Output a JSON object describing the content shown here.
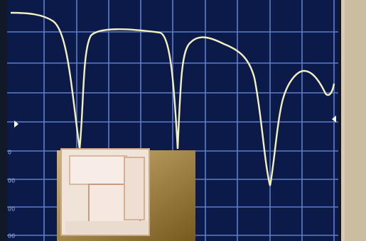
{
  "screen": {
    "scale_labels": [
      "0",
      "00",
      "00",
      "00"
    ]
  }
}
